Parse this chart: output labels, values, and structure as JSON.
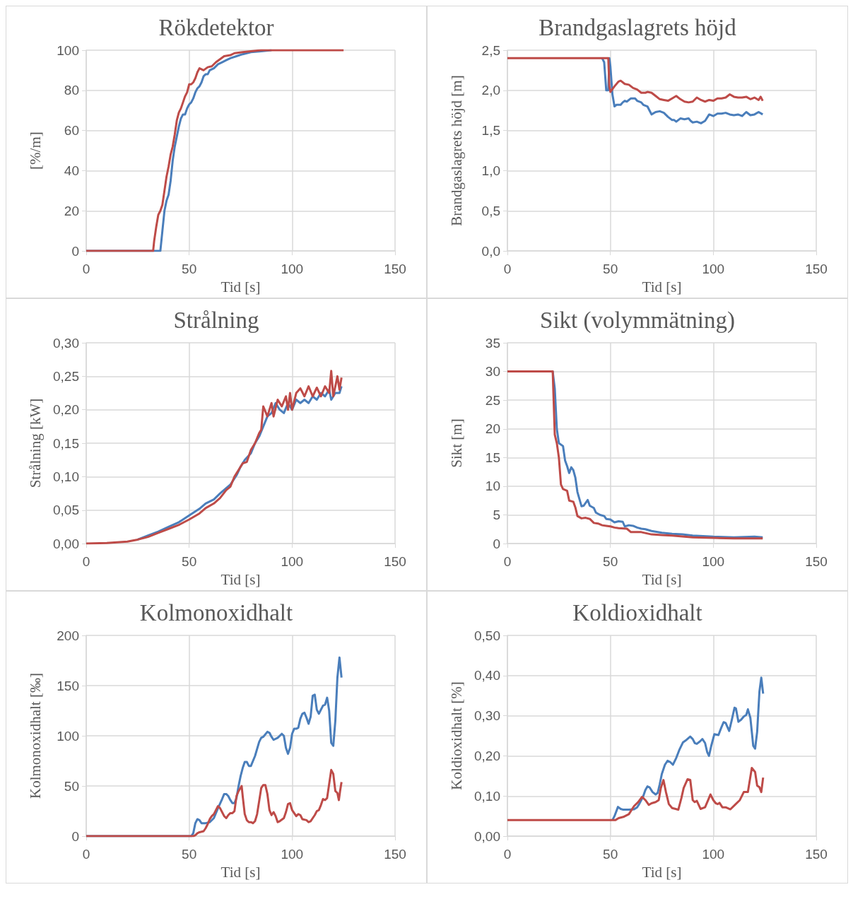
{
  "chart_data": [
    {
      "type": "line",
      "title": "Rökdetektor",
      "xlabel": "Tid [s]",
      "ylabel": "[%/m]",
      "xlim": [
        0,
        150
      ],
      "xticks": [
        0,
        50,
        100,
        150
      ],
      "ylim": [
        0,
        100
      ],
      "yticks": [
        0,
        20,
        40,
        60,
        80,
        100
      ],
      "grid": true,
      "marker": "none",
      "series": [
        {
          "color": "#4a7ebb",
          "x": [
            0,
            35,
            36,
            37,
            38,
            39,
            40,
            41,
            42,
            43,
            44,
            45,
            46,
            47,
            48,
            49,
            50,
            51,
            52,
            53,
            54,
            55,
            56,
            57,
            58,
            59,
            60,
            62,
            64,
            66,
            68,
            70,
            73,
            76,
            80,
            85,
            90
          ],
          "values": [
            0,
            0,
            0,
            10,
            20,
            25,
            28,
            35,
            45,
            52,
            57,
            62,
            66,
            68,
            68,
            71,
            73,
            74,
            76,
            79,
            81,
            82,
            84,
            87,
            88,
            88,
            90,
            91,
            93,
            94,
            95,
            96,
            97,
            98,
            99,
            99.5,
            100
          ]
        },
        {
          "color": "#be4b48",
          "x": [
            0,
            32.5,
            33,
            34,
            35,
            36,
            37,
            38,
            39,
            40,
            41,
            42,
            43,
            44,
            45,
            46,
            47,
            48,
            49,
            50,
            51,
            52,
            53,
            54,
            55,
            57,
            59,
            61,
            63,
            65,
            67,
            70,
            72,
            76,
            80,
            85,
            125
          ],
          "values": [
            0,
            0,
            5,
            12,
            18,
            20,
            23,
            30,
            37,
            42,
            48,
            52,
            58,
            65,
            69,
            71,
            74,
            77,
            79,
            83,
            83,
            84,
            86,
            89,
            91,
            90,
            91.5,
            92,
            94,
            95.5,
            97,
            97.5,
            98.5,
            99,
            99.5,
            100,
            100
          ]
        }
      ]
    },
    {
      "type": "line",
      "title": "Brandgaslagrets höjd",
      "xlabel": "Tid [s]",
      "ylabel": "Brandgaslagrets höjd [m]",
      "xlim": [
        0,
        150
      ],
      "xticks": [
        0,
        50,
        100,
        150
      ],
      "ylim": [
        0,
        2.5
      ],
      "yticks": [
        {
          "value": 0,
          "label": "0,0"
        },
        {
          "value": 0.5,
          "label": "0,5"
        },
        {
          "value": 1,
          "label": "1,0"
        },
        {
          "value": 1.5,
          "label": "1,5"
        },
        {
          "value": 2,
          "label": "2,0"
        },
        {
          "value": 2.5,
          "label": "2,5"
        }
      ],
      "grid": true,
      "marker": "none",
      "series": [
        {
          "color": "#4a7ebb",
          "x": [
            46,
            47,
            48,
            49,
            49.5,
            50,
            51,
            52,
            53,
            55,
            56,
            57,
            58,
            60,
            62,
            63,
            65,
            66,
            68,
            69,
            70,
            72,
            74,
            76,
            78,
            80,
            81,
            82,
            84,
            86,
            88,
            89,
            90,
            92,
            94,
            96,
            98,
            100,
            102,
            104,
            106,
            108,
            110,
            112,
            114,
            116,
            118,
            120,
            122,
            124
          ],
          "values": [
            2.4,
            2.35,
            2.0,
            2.0,
            2.4,
            2.3,
            1.95,
            1.8,
            1.82,
            1.82,
            1.85,
            1.87,
            1.86,
            1.9,
            1.9,
            1.87,
            1.85,
            1.82,
            1.8,
            1.75,
            1.7,
            1.73,
            1.74,
            1.72,
            1.67,
            1.63,
            1.63,
            1.61,
            1.65,
            1.64,
            1.65,
            1.62,
            1.6,
            1.61,
            1.59,
            1.62,
            1.7,
            1.68,
            1.71,
            1.71,
            1.72,
            1.7,
            1.69,
            1.7,
            1.68,
            1.73,
            1.69,
            1.7,
            1.73,
            1.7
          ]
        },
        {
          "color": "#be4b48",
          "x": [
            0,
            49,
            49.5,
            50,
            52,
            54,
            55,
            57,
            59,
            61,
            63,
            65,
            67,
            68,
            70,
            72,
            74,
            76,
            78,
            80,
            82,
            84,
            86,
            88,
            90,
            92,
            94,
            96,
            98,
            100,
            102,
            104,
            106,
            108,
            110,
            112,
            114,
            116,
            118,
            120,
            122,
            123,
            124
          ],
          "values": [
            2.4,
            2.4,
            2.05,
            1.98,
            2.05,
            2.11,
            2.12,
            2.08,
            2.07,
            2.03,
            2.01,
            1.97,
            1.97,
            1.98,
            1.97,
            1.93,
            1.89,
            1.88,
            1.87,
            1.9,
            1.93,
            1.89,
            1.86,
            1.85,
            1.86,
            1.91,
            1.88,
            1.86,
            1.88,
            1.87,
            1.9,
            1.9,
            1.91,
            1.95,
            1.92,
            1.91,
            1.91,
            1.92,
            1.89,
            1.91,
            1.88,
            1.92,
            1.87
          ]
        }
      ]
    },
    {
      "type": "line",
      "title": "Strålning",
      "xlabel": "Tid [s]",
      "ylabel": "Strålning [kW]",
      "xlim": [
        0,
        150
      ],
      "xticks": [
        0,
        50,
        100,
        150
      ],
      "ylim": [
        0,
        0.3
      ],
      "yticks": [
        {
          "value": 0,
          "label": "0,00"
        },
        {
          "value": 0.05,
          "label": "0,05"
        },
        {
          "value": 0.1,
          "label": "0,10"
        },
        {
          "value": 0.15,
          "label": "0,15"
        },
        {
          "value": 0.2,
          "label": "0,20"
        },
        {
          "value": 0.25,
          "label": "0,25"
        },
        {
          "value": 0.3,
          "label": "0,30"
        }
      ],
      "grid": true,
      "marker": "none",
      "series": [
        {
          "color": "#4a7ebb",
          "x": [
            25,
            30,
            35,
            40,
            45,
            50,
            55,
            58,
            62,
            65,
            70,
            73,
            75,
            77,
            80,
            82,
            84,
            86,
            88,
            90,
            92,
            94,
            96,
            98,
            100,
            102,
            104,
            106,
            108,
            110,
            112,
            114,
            116,
            118,
            119,
            121,
            123,
            124
          ],
          "values": [
            0.006,
            0.012,
            0.018,
            0.025,
            0.032,
            0.042,
            0.052,
            0.06,
            0.066,
            0.075,
            0.088,
            0.102,
            0.115,
            0.125,
            0.135,
            0.15,
            0.16,
            0.175,
            0.19,
            0.195,
            0.21,
            0.2,
            0.195,
            0.21,
            0.2,
            0.215,
            0.21,
            0.215,
            0.21,
            0.22,
            0.215,
            0.225,
            0.22,
            0.23,
            0.215,
            0.225,
            0.225,
            0.235
          ]
        },
        {
          "color": "#be4b48",
          "x": [
            0,
            10,
            20,
            25,
            30,
            35,
            40,
            45,
            50,
            55,
            58,
            62,
            65,
            68,
            70,
            72,
            74,
            76,
            78,
            80,
            82,
            84,
            85,
            86,
            88,
            90,
            91,
            93,
            95,
            97,
            98,
            99,
            100,
            102,
            104,
            106,
            108,
            110,
            112,
            114,
            116,
            118,
            119,
            120,
            122,
            123,
            124
          ],
          "values": [
            0,
            0.001,
            0.003,
            0.006,
            0.01,
            0.016,
            0.022,
            0.028,
            0.036,
            0.045,
            0.053,
            0.06,
            0.068,
            0.08,
            0.085,
            0.1,
            0.11,
            0.12,
            0.122,
            0.14,
            0.15,
            0.165,
            0.17,
            0.205,
            0.19,
            0.21,
            0.19,
            0.215,
            0.205,
            0.22,
            0.2,
            0.225,
            0.2,
            0.225,
            0.232,
            0.22,
            0.235,
            0.22,
            0.233,
            0.22,
            0.235,
            0.225,
            0.258,
            0.22,
            0.25,
            0.23,
            0.248
          ]
        }
      ]
    },
    {
      "type": "line",
      "title": "Sikt (volymmätning)",
      "xlabel": "Tid [s]",
      "ylabel": "Sikt [m]",
      "xlim": [
        0,
        150
      ],
      "xticks": [
        0,
        50,
        100,
        150
      ],
      "ylim": [
        0,
        35
      ],
      "yticks": [
        0,
        5,
        10,
        15,
        20,
        25,
        30,
        35
      ],
      "grid": true,
      "marker": "none",
      "series": [
        {
          "color": "#4a7ebb",
          "x": [
            0,
            22,
            23,
            24,
            25,
            27,
            28,
            29,
            30,
            31,
            32,
            33,
            34,
            36,
            37,
            39,
            40,
            42,
            43,
            45,
            47,
            48,
            50,
            52,
            54,
            56,
            57,
            59,
            61,
            63,
            65,
            67,
            70,
            75,
            80,
            85,
            90,
            95,
            100,
            110,
            120,
            124
          ],
          "values": [
            30,
            30,
            27,
            20,
            17.5,
            17,
            14.5,
            13.5,
            12.3,
            13.3,
            12.8,
            11.5,
            9,
            6.5,
            6.6,
            7.6,
            6.6,
            6.2,
            5.4,
            5,
            4.8,
            4.3,
            4.2,
            3.7,
            3.9,
            3.8,
            3,
            3.2,
            3.1,
            2.8,
            2.6,
            2.5,
            2.2,
            1.9,
            1.7,
            1.6,
            1.4,
            1.3,
            1.2,
            1.1,
            1.2,
            1.1
          ]
        },
        {
          "color": "#be4b48",
          "x": [
            0,
            22,
            23,
            24,
            25,
            26,
            27,
            29,
            30,
            32,
            33,
            34,
            36,
            38,
            40,
            42,
            44,
            46,
            48,
            50,
            52,
            54,
            58,
            60,
            65,
            70,
            75,
            80,
            90,
            100,
            110,
            124
          ],
          "values": [
            30,
            30,
            19,
            17.5,
            15,
            10.3,
            9.5,
            9.2,
            7.5,
            7.3,
            6.3,
            4.8,
            4.4,
            4.5,
            4.3,
            3.6,
            3.5,
            3.2,
            3.1,
            3,
            2.8,
            2.7,
            2.6,
            2,
            2,
            1.6,
            1.5,
            1.4,
            1.1,
            1,
            0.9,
            0.9
          ]
        }
      ]
    },
    {
      "type": "line",
      "title": "Kolmonoxidhalt",
      "xlabel": "Tid [s]",
      "ylabel": "Kolmonoxidhalt [‰]",
      "xlim": [
        0,
        150
      ],
      "xticks": [
        0,
        50,
        100,
        150
      ],
      "ylim": [
        0,
        200
      ],
      "yticks": [
        0,
        50,
        100,
        150,
        200
      ],
      "grid": true,
      "marker": "none",
      "series": [
        {
          "color": "#4a7ebb",
          "x": [
            0,
            51,
            52,
            53,
            54,
            55,
            56,
            58,
            60,
            62,
            64,
            66,
            67,
            68,
            69,
            70,
            71,
            72,
            73,
            74,
            75,
            76,
            77,
            78,
            79,
            80,
            82,
            84,
            85,
            86,
            88,
            89,
            90,
            91,
            93,
            95,
            96,
            97,
            98,
            99,
            100,
            101,
            102,
            103,
            104,
            105,
            106,
            107,
            108,
            109,
            110,
            111,
            112,
            113,
            115,
            116,
            117,
            118,
            119,
            120,
            121,
            122,
            123,
            124
          ],
          "values": [
            0,
            0,
            3,
            13,
            17,
            16,
            13,
            13,
            14,
            18,
            28,
            37,
            42,
            42,
            40,
            36,
            33,
            33,
            38,
            50,
            60,
            68,
            74,
            74,
            70,
            70,
            80,
            94,
            98,
            99,
            104,
            103,
            99,
            96,
            98,
            102,
            100,
            88,
            82,
            88,
            102,
            107,
            107,
            108,
            117,
            122,
            123,
            118,
            112,
            119,
            140,
            141,
            126,
            122,
            130,
            131,
            138,
            125,
            93,
            90,
            115,
            158,
            178,
            158
          ]
        },
        {
          "color": "#be4b48",
          "x": [
            0,
            52,
            53,
            54,
            55,
            57,
            58,
            59,
            60,
            61,
            62,
            63,
            64,
            65,
            66,
            67,
            68,
            69,
            70,
            71,
            72,
            73,
            74,
            75.5,
            76,
            77,
            78,
            79,
            80,
            81,
            82,
            83,
            84,
            85,
            86,
            87,
            88,
            89,
            90,
            91,
            92,
            93,
            94,
            96,
            97,
            98,
            99,
            100,
            102,
            103,
            104,
            105,
            107,
            108,
            109,
            111,
            112,
            113,
            114,
            115,
            116,
            117,
            118,
            119,
            120,
            121,
            122,
            122.7,
            123.3,
            124
          ],
          "values": [
            0,
            0,
            1,
            3,
            4,
            5,
            8,
            12,
            17,
            20,
            22,
            26,
            30,
            28,
            24,
            20,
            18,
            21,
            23,
            23,
            25,
            40,
            45,
            50,
            40,
            22,
            16,
            14,
            14,
            13,
            15,
            22,
            35,
            48,
            51,
            51,
            42,
            26,
            21,
            24,
            20,
            14,
            15,
            18,
            24,
            32,
            33,
            26,
            20,
            22,
            21,
            17,
            16,
            14,
            15,
            21,
            25,
            26,
            31,
            37,
            36,
            38,
            52,
            66,
            62,
            45,
            43,
            36,
            45,
            54
          ]
        }
      ]
    },
    {
      "type": "line",
      "title": "Koldioxidhalt",
      "xlabel": "Tid [s]",
      "ylabel": "Koldioxidhalt [%]",
      "xlim": [
        0,
        150
      ],
      "xticks": [
        0,
        50,
        100,
        150
      ],
      "ylim": [
        0,
        0.5
      ],
      "yticks": [
        {
          "value": 0,
          "label": "0,00"
        },
        {
          "value": 0.1,
          "label": "0,10"
        },
        {
          "value": 0.2,
          "label": "0,20"
        },
        {
          "value": 0.3,
          "label": "0,30"
        },
        {
          "value": 0.4,
          "label": "0,40"
        },
        {
          "value": 0.5,
          "label": "0,50"
        }
      ],
      "grid": true,
      "marker": "none",
      "series": [
        {
          "color": "#4a7ebb",
          "x": [
            51,
            52,
            53.7,
            55,
            56.3,
            59,
            61.5,
            63,
            64,
            66,
            67,
            68,
            69,
            70.5,
            72,
            73,
            74,
            75,
            76.5,
            77.8,
            79,
            80.4,
            82,
            83.5,
            85.3,
            87,
            88.8,
            90,
            91,
            92,
            93.5,
            94.7,
            96,
            97,
            97.9,
            99,
            100.5,
            102.5,
            104,
            105,
            106,
            107.7,
            109,
            110.3,
            111,
            112.2,
            113.5,
            114.8,
            116,
            116.8,
            118,
            119.4,
            120.3,
            121.3,
            122.4,
            123.3,
            124.2
          ],
          "values": [
            0.04,
            0.05,
            0.073,
            0.068,
            0.066,
            0.066,
            0.067,
            0.072,
            0.08,
            0.1,
            0.115,
            0.124,
            0.122,
            0.11,
            0.104,
            0.108,
            0.13,
            0.155,
            0.178,
            0.188,
            0.185,
            0.178,
            0.195,
            0.215,
            0.234,
            0.24,
            0.248,
            0.242,
            0.232,
            0.23,
            0.236,
            0.242,
            0.232,
            0.21,
            0.2,
            0.225,
            0.254,
            0.252,
            0.272,
            0.284,
            0.282,
            0.262,
            0.29,
            0.32,
            0.318,
            0.285,
            0.29,
            0.298,
            0.302,
            0.316,
            0.295,
            0.225,
            0.218,
            0.26,
            0.36,
            0.395,
            0.355
          ]
        },
        {
          "color": "#be4b48",
          "x": [
            0,
            52.4,
            54,
            56.3,
            59,
            61.5,
            63.5,
            65.4,
            67,
            68.7,
            70,
            72,
            73.5,
            74.5,
            75.8,
            77,
            78.4,
            80,
            81.7,
            83,
            84.5,
            85.6,
            87.5,
            88.8,
            90,
            91,
            92,
            93.8,
            96,
            97.5,
            98.6,
            100,
            101.2,
            102.2,
            103,
            104.4,
            106,
            108.3,
            110.9,
            112.9,
            114.8,
            116.8,
            118.7,
            120.3,
            121.3,
            122.4,
            123.3,
            124.2
          ],
          "values": [
            0.04,
            0.04,
            0.045,
            0.048,
            0.055,
            0.075,
            0.085,
            0.098,
            0.09,
            0.078,
            0.082,
            0.085,
            0.09,
            0.12,
            0.14,
            0.11,
            0.08,
            0.07,
            0.068,
            0.066,
            0.095,
            0.12,
            0.142,
            0.14,
            0.09,
            0.085,
            0.088,
            0.068,
            0.072,
            0.09,
            0.104,
            0.09,
            0.082,
            0.08,
            0.083,
            0.072,
            0.072,
            0.067,
            0.08,
            0.09,
            0.11,
            0.11,
            0.17,
            0.16,
            0.126,
            0.122,
            0.11,
            0.146
          ]
        }
      ]
    }
  ]
}
